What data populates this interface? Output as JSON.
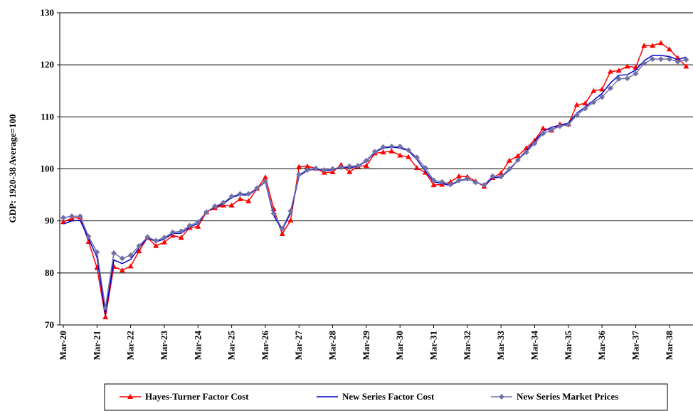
{
  "chart_data": {
    "type": "line",
    "y_label": "GDP: 1920-38 Average=100",
    "categories": [
      "Mar-20",
      null,
      null,
      null,
      "Mar-21",
      null,
      null,
      null,
      "Mar-22",
      null,
      null,
      null,
      "Mar-23",
      null,
      null,
      null,
      "Mar-24",
      null,
      null,
      null,
      "Mar-25",
      null,
      null,
      null,
      "Mar-26",
      null,
      null,
      null,
      "Mar-27",
      null,
      null,
      null,
      "Mar-28",
      null,
      null,
      null,
      "Mar-29",
      null,
      null,
      null,
      "Mar-30",
      null,
      null,
      null,
      "Mar-31",
      null,
      null,
      null,
      "Mar-32",
      null,
      null,
      null,
      "Mar-33",
      null,
      null,
      null,
      "Mar-34",
      null,
      null,
      null,
      "Mar-35",
      null,
      null,
      null,
      "Mar-36",
      null,
      null,
      null,
      "Mar-37",
      null,
      null,
      null,
      "Mar-38",
      null,
      null
    ],
    "ylim": [
      70,
      130
    ],
    "yticks": [
      70,
      80,
      90,
      100,
      110,
      120,
      130
    ],
    "grid": true,
    "legend": "bottom",
    "series": [
      {
        "name": "Hayes-Turner Factor Cost",
        "color": "#ff0000",
        "marker": "triangle",
        "values": [
          89.8,
          90.5,
          90.7,
          86.0,
          81.0,
          71.5,
          81.2,
          80.5,
          81.3,
          84.2,
          86.8,
          85.2,
          85.9,
          87.2,
          86.8,
          88.7,
          88.9,
          91.7,
          92.5,
          93.0,
          93.0,
          94.2,
          93.8,
          96.2,
          98.4,
          92.3,
          87.5,
          90.1,
          100.4,
          100.5,
          100.1,
          99.3,
          99.4,
          100.8,
          99.4,
          100.5,
          100.6,
          103.0,
          103.2,
          103.4,
          102.6,
          102.3,
          100.2,
          99.3,
          96.9,
          97.0,
          97.5,
          98.6,
          98.5,
          97.6,
          96.6,
          98.3,
          99.2,
          101.6,
          102.5,
          104.0,
          105.5,
          107.8,
          107.4,
          108.6,
          108.6,
          112.3,
          112.6,
          115.0,
          115.3,
          118.7,
          118.9,
          119.7,
          119.5,
          123.7,
          123.7,
          124.2,
          123.0,
          121.3,
          119.7
        ]
      },
      {
        "name": "New Series Factor Cost",
        "color": "#0000cc",
        "marker": "none",
        "values": [
          89.4,
          90.0,
          90.1,
          86.6,
          83.0,
          72.0,
          82.5,
          81.8,
          82.6,
          84.8,
          86.8,
          86.0,
          86.5,
          87.6,
          87.6,
          88.8,
          89.5,
          91.8,
          92.6,
          93.3,
          94.5,
          95.0,
          95.0,
          96.2,
          97.5,
          91.0,
          88.3,
          91.5,
          98.6,
          99.7,
          100.0,
          99.7,
          99.8,
          100.4,
          100.2,
          100.5,
          101.5,
          103.2,
          104.0,
          104.2,
          104.0,
          103.5,
          101.8,
          99.6,
          97.5,
          97.2,
          96.8,
          97.7,
          98.0,
          97.5,
          96.8,
          98.3,
          98.4,
          99.8,
          101.7,
          103.5,
          105.3,
          107.2,
          108.0,
          108.4,
          108.8,
          110.7,
          111.9,
          113.2,
          114.5,
          116.5,
          118.0,
          118.1,
          119.0,
          120.8,
          121.8,
          121.8,
          121.6,
          121.0,
          121.5
        ]
      },
      {
        "name": "New Series Market Prices",
        "color": "#7070a8",
        "marker": "diamond",
        "values": [
          90.6,
          90.9,
          90.9,
          87.0,
          84.0,
          73.3,
          83.8,
          82.8,
          83.4,
          85.2,
          86.9,
          86.2,
          86.8,
          87.8,
          88.0,
          89.1,
          89.8,
          91.7,
          92.8,
          93.5,
          94.7,
          95.2,
          95.2,
          96.3,
          97.6,
          91.4,
          88.5,
          91.9,
          98.9,
          99.8,
          100.1,
          99.8,
          100.0,
          100.3,
          100.5,
          100.6,
          101.6,
          103.3,
          104.2,
          104.3,
          104.3,
          103.6,
          102.2,
          100.2,
          97.8,
          97.5,
          97.0,
          97.8,
          98.1,
          97.4,
          96.9,
          98.6,
          98.5,
          100.0,
          101.7,
          103.2,
          104.9,
          106.8,
          107.5,
          108.2,
          108.5,
          110.3,
          111.6,
          112.8,
          113.8,
          115.5,
          117.3,
          117.4,
          118.3,
          120.3,
          121.1,
          121.1,
          121.1,
          120.6,
          121.0
        ]
      }
    ]
  }
}
